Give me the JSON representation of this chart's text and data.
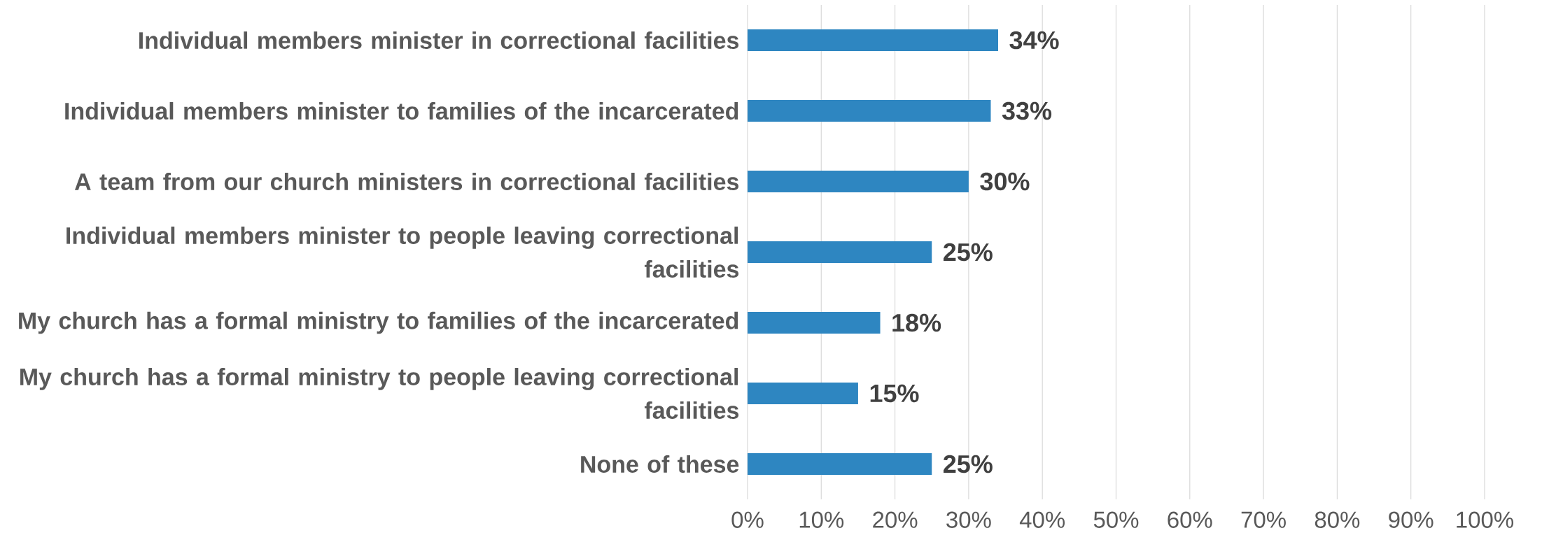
{
  "chart_data": {
    "type": "bar",
    "orientation": "horizontal",
    "categories": [
      "Individual members minister in correctional facilities",
      "Individual members minister to families of the incarcerated",
      "A team from our church ministers in correctional facilities",
      "Individual members minister to people leaving correctional facilities",
      "My church has a formal ministry to families of the incarcerated",
      "My church has a formal ministry to people leaving correctional facilities",
      "None of these"
    ],
    "values": [
      34,
      33,
      30,
      25,
      18,
      15,
      25
    ],
    "value_labels": [
      "34%",
      "33%",
      "30%",
      "25%",
      "18%",
      "15%",
      "25%"
    ],
    "color": "#2e86c1",
    "xlim": [
      0,
      100
    ],
    "xticks": [
      {
        "value": 0,
        "label": "0%"
      },
      {
        "value": 10,
        "label": "10%"
      },
      {
        "value": 20,
        "label": "20%"
      },
      {
        "value": 30,
        "label": "30%"
      },
      {
        "value": 40,
        "label": "40%"
      },
      {
        "value": 50,
        "label": "50%"
      },
      {
        "value": 60,
        "label": "60%"
      },
      {
        "value": 70,
        "label": "70%"
      },
      {
        "value": 80,
        "label": "80%"
      },
      {
        "value": 90,
        "label": "90%"
      },
      {
        "value": 100,
        "label": "100%"
      }
    ],
    "grid": "x"
  }
}
